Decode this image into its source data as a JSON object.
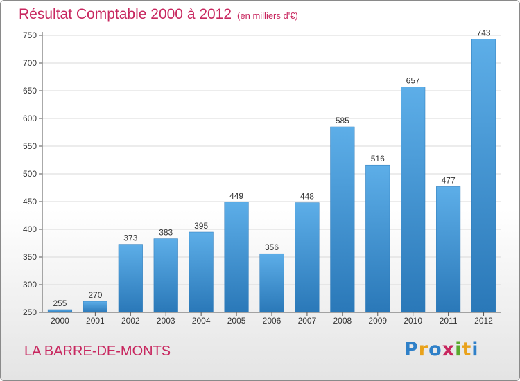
{
  "header": {
    "title": "Résultat Comptable 2000 à 2012",
    "unit_note": "(en milliers d'€)"
  },
  "footer": {
    "city": "LA BARRE-DE-MONTS",
    "logo_letters": [
      "P",
      "r",
      "o",
      "x",
      "i",
      "t",
      "i"
    ]
  },
  "colors": {
    "title": "#c8275f",
    "bar_light": "#5daee8",
    "bar_dark": "#2a78b8",
    "grid": "#d9d9d9",
    "axis": "#555555"
  },
  "chart_data": {
    "type": "bar",
    "title": "Résultat Comptable 2000 à 2012",
    "xlabel": "",
    "ylabel": "(en milliers d'€)",
    "categories": [
      "2000",
      "2001",
      "2002",
      "2003",
      "2004",
      "2005",
      "2006",
      "2007",
      "2008",
      "2009",
      "2010",
      "2011",
      "2012"
    ],
    "values": [
      255,
      270,
      373,
      383,
      395,
      449,
      356,
      448,
      585,
      516,
      657,
      477,
      743
    ],
    "ylim": [
      250,
      750
    ],
    "yticks": [
      250,
      300,
      350,
      400,
      450,
      500,
      550,
      600,
      650,
      700,
      750
    ],
    "grid": true
  }
}
